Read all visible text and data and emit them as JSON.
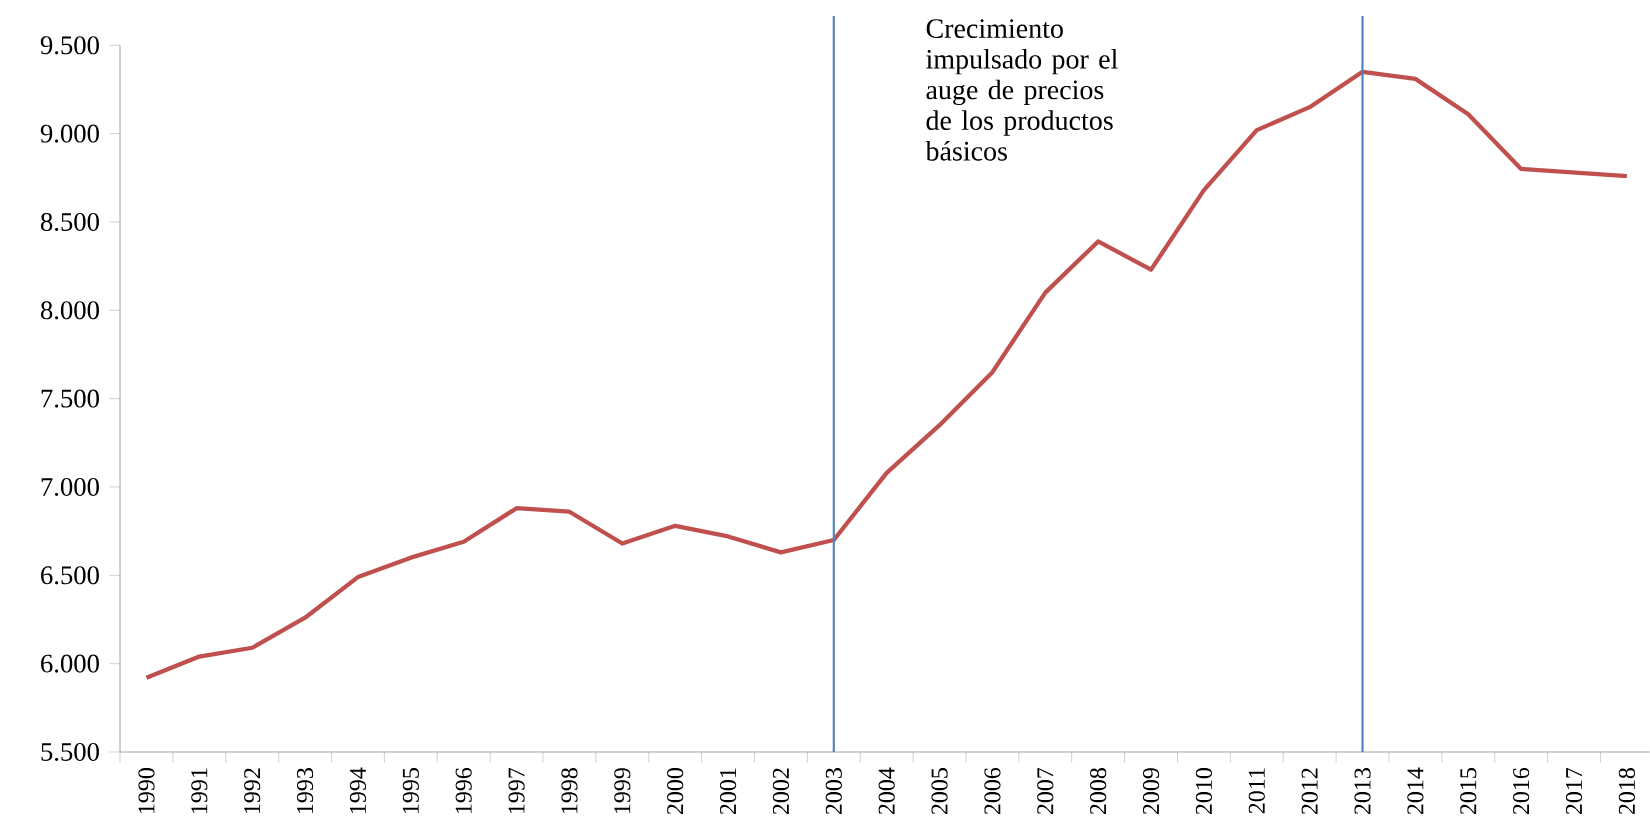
{
  "chart_data": {
    "type": "line",
    "categories": [
      "1990",
      "1991",
      "1992",
      "1993",
      "1994",
      "1995",
      "1996",
      "1997",
      "1998",
      "1999",
      "2000",
      "2001",
      "2002",
      "2003",
      "2004",
      "2005",
      "2006",
      "2007",
      "2008",
      "2009",
      "2010",
      "2011",
      "2012",
      "2013",
      "2014",
      "2015",
      "2016",
      "2017",
      "2018"
    ],
    "series": [
      {
        "color": "#c0504d",
        "values": [
          5920,
          6040,
          6090,
          6260,
          6490,
          6600,
          6690,
          6880,
          6860,
          6680,
          6780,
          6720,
          6630,
          6700,
          7080,
          7350,
          7650,
          8100,
          8390,
          8230,
          8680,
          9020,
          9150,
          9350,
          9310,
          9110,
          8800,
          8780,
          8760
        ]
      }
    ],
    "ylim": [
      5500,
      9500
    ],
    "yticks": [
      {
        "value": 5500,
        "label": "5.500"
      },
      {
        "value": 6000,
        "label": "6.000"
      },
      {
        "value": 6500,
        "label": "6.500"
      },
      {
        "value": 7000,
        "label": "7.000"
      },
      {
        "value": 7500,
        "label": "7.500"
      },
      {
        "value": 8000,
        "label": "8.000"
      },
      {
        "value": 8500,
        "label": "8.500"
      },
      {
        "value": 9000,
        "label": "9.000"
      },
      {
        "value": 9500,
        "label": "9.500"
      }
    ],
    "ref_lines": [
      {
        "axis": "x",
        "value": "2003",
        "color": "#4f81bd"
      },
      {
        "axis": "x",
        "value": "2013",
        "color": "#4f81bd"
      }
    ],
    "annotations": [
      "Crecimiento impulsado por el auge de precios de los productos básicos"
    ]
  }
}
